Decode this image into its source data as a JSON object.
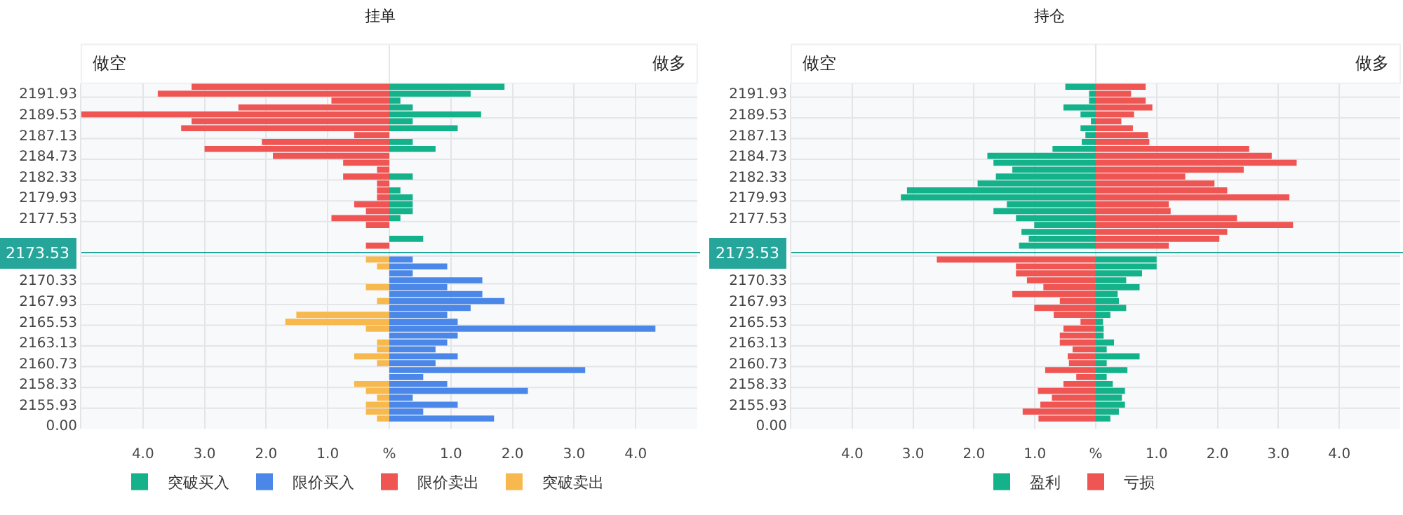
{
  "chart_data": [
    {
      "type": "bar",
      "orientation": "horizontal",
      "stacked": true,
      "title": "挂单",
      "categories": [
        null,
        "2191.93",
        null,
        null,
        "2189.53",
        null,
        null,
        "2187.13",
        null,
        null,
        "2184.73",
        null,
        null,
        "2182.33",
        null,
        null,
        "2179.93",
        null,
        null,
        "2177.53",
        null,
        null,
        null,
        null,
        "2173.53",
        null,
        null,
        null,
        "2170.33",
        null,
        null,
        "2167.93",
        null,
        null,
        "2165.53",
        null,
        null,
        "2163.13",
        null,
        null,
        "2160.73",
        null,
        null,
        "2158.33",
        null,
        null,
        "2155.93",
        null,
        null,
        "0.00"
      ],
      "series": [
        {
          "name": "突破买入",
          "color": "#14b28a",
          "values": [
            1.87,
            1.32,
            0.18,
            0.38,
            1.49,
            0.38,
            1.11,
            null,
            0.38,
            0.75,
            null,
            null,
            null,
            0.38,
            null,
            0.18,
            0.38,
            0.38,
            0.38,
            0.18,
            null,
            null,
            0.55,
            null,
            null,
            null,
            null,
            null,
            null,
            null,
            null,
            null,
            null,
            null,
            null,
            null,
            null,
            null,
            null,
            null,
            null,
            null,
            null,
            null,
            null,
            null,
            null,
            null,
            null,
            null
          ]
        },
        {
          "name": "限价买入",
          "color": "#4a87e8",
          "values": [
            null,
            null,
            null,
            null,
            null,
            null,
            null,
            null,
            null,
            null,
            null,
            null,
            null,
            null,
            null,
            null,
            null,
            null,
            null,
            null,
            null,
            null,
            null,
            null,
            null,
            0.38,
            0.94,
            0.38,
            1.51,
            0.94,
            1.51,
            1.87,
            1.32,
            0.94,
            1.11,
            4.32,
            1.11,
            0.94,
            0.75,
            1.11,
            0.75,
            3.18,
            0.55,
            0.94,
            2.25,
            0.38,
            1.11,
            0.55,
            1.7,
            null
          ]
        },
        {
          "name": "限价卖出",
          "color": "#ef5552",
          "values": [
            -3.21,
            -3.76,
            -0.94,
            -2.45,
            -5.0,
            -3.21,
            -3.38,
            -0.57,
            -2.07,
            -3.0,
            -1.89,
            -0.75,
            -0.2,
            -0.75,
            -0.2,
            -0.2,
            -0.2,
            -0.57,
            -0.38,
            -0.94,
            -0.38,
            null,
            null,
            -0.38,
            null,
            null,
            null,
            null,
            null,
            null,
            null,
            null,
            null,
            null,
            null,
            null,
            null,
            null,
            null,
            null,
            null,
            null,
            null,
            null,
            null,
            null,
            null,
            null,
            null,
            null
          ]
        },
        {
          "name": "突破卖出",
          "color": "#f7b94e",
          "values": [
            null,
            null,
            null,
            null,
            null,
            null,
            null,
            null,
            null,
            null,
            null,
            null,
            null,
            null,
            null,
            null,
            null,
            null,
            null,
            null,
            null,
            null,
            null,
            null,
            null,
            -0.38,
            -0.2,
            null,
            null,
            -0.38,
            null,
            -0.2,
            null,
            -1.51,
            -1.69,
            -0.38,
            null,
            -0.2,
            -0.2,
            -0.57,
            -0.2,
            null,
            null,
            -0.57,
            -0.38,
            -0.2,
            -0.38,
            -0.38,
            -0.2,
            null
          ]
        }
      ],
      "xlim": [
        -5,
        5
      ],
      "xticks": [
        {
          "value": -4,
          "label": "4.0"
        },
        {
          "value": -3,
          "label": "3.0"
        },
        {
          "value": -2,
          "label": "2.0"
        },
        {
          "value": -1,
          "label": "1.0"
        },
        {
          "value": 0,
          "label": "%"
        },
        {
          "value": 1,
          "label": "1.0"
        },
        {
          "value": 2,
          "label": "2.0"
        },
        {
          "value": 3,
          "label": "3.0"
        },
        {
          "value": 4,
          "label": "4.0"
        }
      ],
      "annotations": [
        "做空",
        "做多"
      ],
      "ref_lines": [
        {
          "axis": "y",
          "value": "2173.53",
          "color": "#26a69a"
        }
      ],
      "grid": true,
      "legend": "bottom"
    },
    {
      "type": "bar",
      "orientation": "horizontal",
      "stacked": true,
      "title": "持仓",
      "categories": [
        null,
        "2191.93",
        null,
        null,
        "2189.53",
        null,
        null,
        "2187.13",
        null,
        null,
        "2184.73",
        null,
        null,
        "2182.33",
        null,
        null,
        "2179.93",
        null,
        null,
        "2177.53",
        null,
        null,
        null,
        null,
        "2173.53",
        null,
        null,
        null,
        "2170.33",
        null,
        null,
        "2167.93",
        null,
        null,
        "2165.53",
        null,
        null,
        "2163.13",
        null,
        null,
        "2160.73",
        null,
        null,
        "2158.33",
        null,
        null,
        "2155.93",
        null,
        null,
        "0.00"
      ],
      "series": [
        {
          "name": "盈利",
          "color": "#14b28a",
          "values": [
            -0.5,
            -0.11,
            -0.11,
            -0.53,
            -0.25,
            -0.08,
            -0.25,
            -0.17,
            -0.23,
            -0.71,
            -1.78,
            -1.68,
            -1.37,
            -1.64,
            -1.94,
            -3.1,
            -3.2,
            -1.46,
            -1.68,
            -1.31,
            -1.01,
            -1.22,
            -1.1,
            -1.26,
            null,
            1.0,
            1.0,
            0.76,
            0.5,
            0.72,
            0.36,
            0.38,
            0.5,
            0.24,
            0.12,
            0.13,
            0.13,
            0.3,
            0.18,
            0.72,
            0.18,
            0.52,
            0.18,
            0.28,
            0.48,
            0.43,
            0.48,
            0.38,
            0.24,
            null
          ]
        },
        {
          "name": "亏损",
          "color": "#ef5552",
          "values": [
            0.82,
            0.58,
            0.82,
            0.93,
            0.63,
            0.42,
            0.61,
            0.86,
            0.88,
            2.52,
            2.89,
            3.3,
            2.43,
            1.47,
            1.95,
            2.16,
            3.18,
            1.2,
            1.23,
            2.32,
            3.24,
            2.16,
            2.03,
            1.2,
            null,
            -2.61,
            -1.31,
            -1.31,
            -1.13,
            -0.86,
            -1.37,
            -0.59,
            -1.01,
            -0.69,
            -0.25,
            -0.53,
            -0.59,
            -0.59,
            -0.38,
            -0.46,
            -0.44,
            -0.83,
            -0.32,
            -0.53,
            -0.95,
            -0.72,
            -0.91,
            -1.2,
            -0.94,
            null
          ]
        }
      ],
      "xlim": [
        -5,
        5
      ],
      "xticks": [
        {
          "value": -4,
          "label": "4.0"
        },
        {
          "value": -3,
          "label": "3.0"
        },
        {
          "value": -2,
          "label": "2.0"
        },
        {
          "value": -1,
          "label": "1.0"
        },
        {
          "value": 0,
          "label": "%"
        },
        {
          "value": 1,
          "label": "1.0"
        },
        {
          "value": 2,
          "label": "2.0"
        },
        {
          "value": 3,
          "label": "3.0"
        },
        {
          "value": 4,
          "label": "4.0"
        }
      ],
      "annotations": [
        "做空",
        "做多"
      ],
      "ref_lines": [
        {
          "axis": "y",
          "value": "2173.53",
          "color": "#26a69a"
        }
      ],
      "grid": true,
      "legend": "bottom"
    }
  ]
}
